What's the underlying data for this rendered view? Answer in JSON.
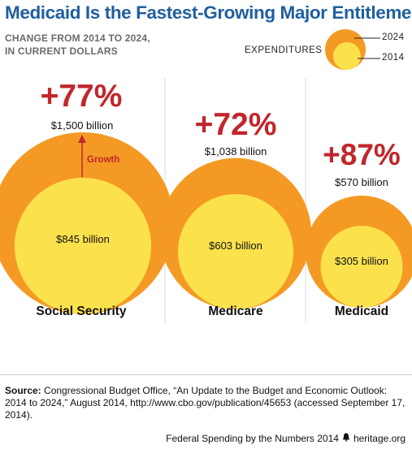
{
  "title": "Medicaid Is the Fastest-Growing Major Entitlement",
  "subtitle_line1": "CHANGE FROM 2014 TO 2024,",
  "subtitle_line2": "IN CURRENT DOLLARS",
  "legend": {
    "label": "EXPENDITURES",
    "outer_year": "2024",
    "inner_year": "2014"
  },
  "colors": {
    "outer": "#f49a24",
    "inner": "#fbe24d",
    "percent": "#c0272d",
    "title": "#1f5f9e",
    "divider": "#d9d9d9"
  },
  "chart_data": {
    "type": "bubble",
    "title": "Medicaid Is the Fastest-Growing Major Entitlement",
    "subtitle": "CHANGE FROM 2014 TO 2024, IN CURRENT DOLLARS",
    "unit": "billion",
    "series": [
      {
        "name": "2014",
        "values": [
          845,
          603,
          305
        ]
      },
      {
        "name": "2024",
        "values": [
          1500,
          1038,
          570
        ]
      }
    ],
    "categories": [
      "Social Security",
      "Medicare",
      "Medicaid"
    ],
    "items": [
      {
        "category": "Social Security",
        "value_2014": 845,
        "value_2024": 1500,
        "pct_change": "+77%",
        "label_2014": "$845 billion",
        "label_2024": "$1,500 billion",
        "annotation": "Growth"
      },
      {
        "category": "Medicare",
        "value_2014": 603,
        "value_2024": 1038,
        "pct_change": "+72%",
        "label_2014": "$603 billion",
        "label_2024": "$1,038 billion"
      },
      {
        "category": "Medicaid",
        "value_2014": 305,
        "value_2024": 570,
        "pct_change": "+87%",
        "label_2014": "$305 billion",
        "label_2024": "$570 billion"
      }
    ]
  },
  "source": {
    "label": "Source:",
    "text": " Congressional Budget Office, “An Update to the Budget and Economic Outlook: 2014 to 2024,” August 2014, http://www.cbo.gov/publication/45653 (accessed September 17, 2014)."
  },
  "footer": {
    "left": "Federal Spending by the Numbers 2014",
    "icon": "liberty-bell-icon",
    "right": "heritage.org"
  }
}
